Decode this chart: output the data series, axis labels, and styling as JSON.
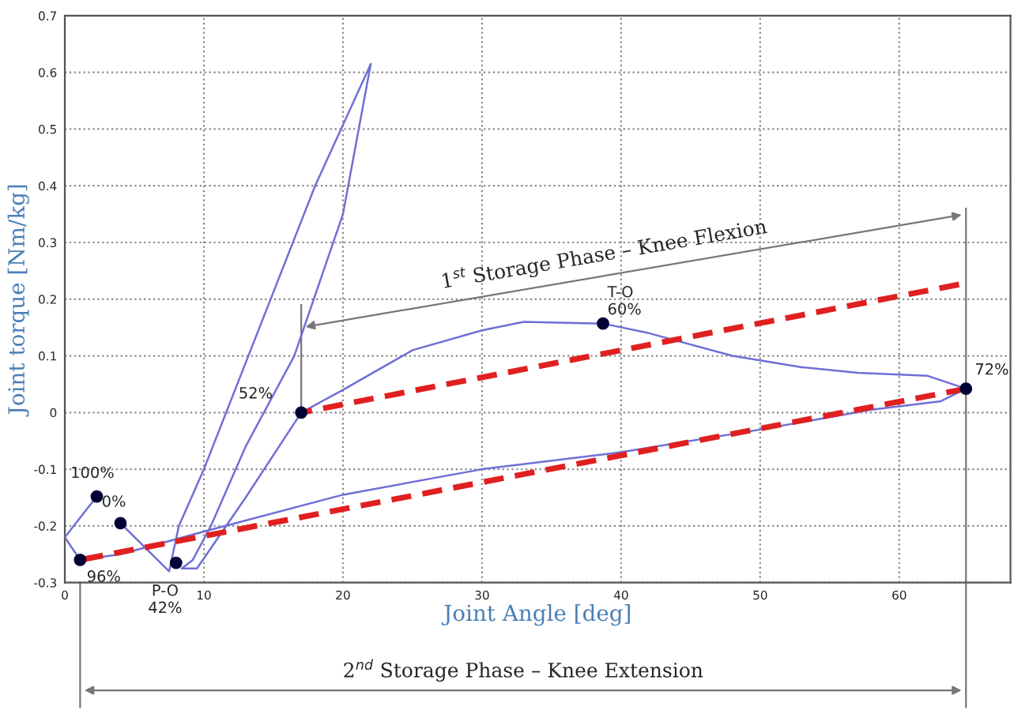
{
  "chart_data": {
    "type": "line",
    "xlabel": "Joint Angle [deg]",
    "ylabel": "Joint torque [Nm/kg]",
    "xlim": [
      0,
      68
    ],
    "ylim": [
      -0.3,
      0.7
    ],
    "xticks": [
      0,
      10,
      20,
      30,
      40,
      50,
      60
    ],
    "yticks": [
      -0.3,
      -0.2,
      -0.1,
      0,
      0.1,
      0.2,
      0.3,
      0.4,
      0.5,
      0.6,
      0.7
    ],
    "grid": true,
    "series": [
      {
        "color": "#6f6fd6",
        "line_style": "solid",
        "x": [
          4.0,
          7.5,
          8.2,
          10,
          14,
          18,
          22,
          20,
          16.5,
          13,
          10.5,
          9.2,
          8.4,
          9.5,
          13,
          17.0,
          20,
          25,
          30,
          33,
          38.7,
          42,
          48,
          53,
          57,
          62,
          64.8,
          63,
          58,
          50,
          40,
          30,
          20,
          10,
          4,
          1.1,
          0,
          2.3
        ],
        "values": [
          -0.195,
          -0.28,
          -0.2,
          -0.1,
          0.15,
          0.4,
          0.615,
          0.35,
          0.1,
          -0.06,
          -0.2,
          -0.26,
          -0.275,
          -0.275,
          -0.15,
          0.0,
          0.04,
          0.11,
          0.145,
          0.16,
          0.157,
          0.14,
          0.1,
          0.08,
          0.07,
          0.065,
          0.042,
          0.02,
          0.005,
          -0.03,
          -0.07,
          -0.1,
          -0.145,
          -0.21,
          -0.25,
          -0.26,
          -0.22,
          -0.148
        ]
      },
      {
        "type": "line",
        "color": "#e02020",
        "line_style": "dashed",
        "x": [
          1.1,
          64.8
        ],
        "values": [
          -0.26,
          0.042
        ]
      },
      {
        "type": "line",
        "color": "#e02020",
        "line_style": "dashed",
        "x": [
          17.0,
          64.3
        ],
        "values": [
          0.0,
          0.226
        ]
      },
      {
        "type": "scatter",
        "color": "#000033",
        "marker": "circle",
        "x": [
          2.3,
          4.0,
          1.1,
          8.0,
          17.0,
          38.7,
          64.8
        ],
        "values": [
          -0.148,
          -0.195,
          -0.26,
          -0.265,
          0.0,
          0.157,
          0.042
        ]
      }
    ],
    "ref_lines": [
      {
        "axis": "x",
        "value": 17.0,
        "color": "#777777"
      },
      {
        "axis": "x",
        "value": 64.8,
        "color": "#777777"
      }
    ],
    "annotations": [
      {
        "text": "100%",
        "x": 2.3,
        "y": -0.148
      },
      {
        "text": "0%",
        "x": 4.0,
        "y": -0.195
      },
      {
        "text": "96%",
        "x": 1.1,
        "y": -0.26
      },
      {
        "text": "P-O\n42%",
        "x": 8.0,
        "y": -0.265
      },
      {
        "text": "52%",
        "x": 17.0,
        "y": 0.0
      },
      {
        "text": "T-O\n60%",
        "x": 38.7,
        "y": 0.157
      },
      {
        "text": "72%",
        "x": 64.8,
        "y": 0.042
      },
      "1$^{st}$ Storage Phase – Knee Flexion",
      "2$^{nd}$ Storage Phase – Knee Extension"
    ]
  }
}
